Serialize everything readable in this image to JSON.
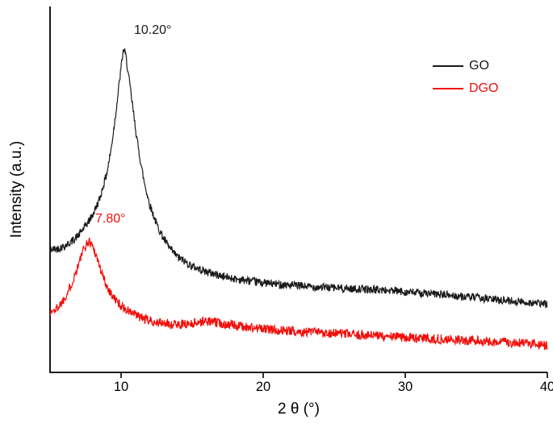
{
  "figure": {
    "xlabel": "2 θ (°)",
    "ylabel": "Intensity (a.u.)"
  },
  "annotations": [
    {
      "text": "10.20°",
      "color": "#1a1a1a",
      "series": "GO"
    },
    {
      "text": "7.80°",
      "color": "#f10e0a",
      "series": "DGO"
    }
  ],
  "legend": {
    "position": "upper right",
    "items": [
      {
        "label": "GO",
        "color": "#1a1a1a",
        "label_color": "#1a1a1a"
      },
      {
        "label": "DGO",
        "color": "#f10e0a",
        "label_color": "#f10e0a"
      }
    ]
  },
  "chart_data": {
    "type": "line",
    "title": "",
    "xlabel": "2 θ (°)",
    "ylabel": "Intensity (a.u.)",
    "x_range": [
      5,
      40
    ],
    "x_ticks": [
      10,
      20,
      30,
      40
    ],
    "y_axis_units": "arbitrary units (no ticks)",
    "grid": false,
    "legend_position": "upper right",
    "series": [
      {
        "name": "GO",
        "color": "#1a1a1a",
        "peak_2theta": 10.2,
        "peak_label": "10.20°",
        "noise": 0.011,
        "seed": 42,
        "points": [
          [
            5,
            0.335
          ],
          [
            5.5,
            0.338
          ],
          [
            6,
            0.345
          ],
          [
            6.5,
            0.357
          ],
          [
            7,
            0.375
          ],
          [
            7.5,
            0.4
          ],
          [
            8,
            0.43
          ],
          [
            8.5,
            0.475
          ],
          [
            9,
            0.545
          ],
          [
            9.3,
            0.61
          ],
          [
            9.6,
            0.7
          ],
          [
            9.9,
            0.8
          ],
          [
            10.1,
            0.865
          ],
          [
            10.2,
            0.885
          ],
          [
            10.35,
            0.86
          ],
          [
            10.6,
            0.79
          ],
          [
            10.9,
            0.7
          ],
          [
            11.2,
            0.615
          ],
          [
            11.6,
            0.525
          ],
          [
            12,
            0.46
          ],
          [
            12.5,
            0.405
          ],
          [
            13,
            0.365
          ],
          [
            13.5,
            0.335
          ],
          [
            14,
            0.315
          ],
          [
            15,
            0.29
          ],
          [
            16,
            0.275
          ],
          [
            17,
            0.264
          ],
          [
            18,
            0.256
          ],
          [
            19,
            0.25
          ],
          [
            20,
            0.245
          ],
          [
            21,
            0.241
          ],
          [
            22,
            0.238
          ],
          [
            23,
            0.235
          ],
          [
            24,
            0.233
          ],
          [
            25,
            0.231
          ],
          [
            26,
            0.229
          ],
          [
            27,
            0.227
          ],
          [
            28,
            0.226
          ],
          [
            29,
            0.223
          ],
          [
            30,
            0.22
          ],
          [
            31,
            0.217
          ],
          [
            32,
            0.214
          ],
          [
            33,
            0.211
          ],
          [
            34,
            0.207
          ],
          [
            35,
            0.204
          ],
          [
            36,
            0.2
          ],
          [
            37,
            0.197
          ],
          [
            38,
            0.193
          ],
          [
            39,
            0.19
          ],
          [
            40,
            0.186
          ]
        ]
      },
      {
        "name": "DGO",
        "color": "#f10e0a",
        "peak_2theta": 7.8,
        "peak_label": "7.80°",
        "noise": 0.013,
        "seed": 1337,
        "points": [
          [
            5,
            0.163
          ],
          [
            5.4,
            0.172
          ],
          [
            5.8,
            0.19
          ],
          [
            6.2,
            0.215
          ],
          [
            6.6,
            0.25
          ],
          [
            7.0,
            0.295
          ],
          [
            7.3,
            0.33
          ],
          [
            7.6,
            0.352
          ],
          [
            7.8,
            0.358
          ],
          [
            8.0,
            0.345
          ],
          [
            8.3,
            0.315
          ],
          [
            8.6,
            0.275
          ],
          [
            9,
            0.235
          ],
          [
            9.5,
            0.203
          ],
          [
            10,
            0.182
          ],
          [
            10.5,
            0.168
          ],
          [
            11,
            0.157
          ],
          [
            11.5,
            0.148
          ],
          [
            12,
            0.141
          ],
          [
            12.5,
            0.137
          ],
          [
            13,
            0.134
          ],
          [
            13.5,
            0.132
          ],
          [
            14,
            0.131
          ],
          [
            14.5,
            0.132
          ],
          [
            15,
            0.134
          ],
          [
            15.5,
            0.138
          ],
          [
            16,
            0.14
          ],
          [
            16.5,
            0.138
          ],
          [
            17,
            0.134
          ],
          [
            18,
            0.128
          ],
          [
            19,
            0.123
          ],
          [
            20,
            0.119
          ],
          [
            21,
            0.116
          ],
          [
            22,
            0.113
          ],
          [
            23,
            0.111
          ],
          [
            24,
            0.109
          ],
          [
            25,
            0.107
          ],
          [
            26,
            0.104
          ],
          [
            27,
            0.102
          ],
          [
            28,
            0.1
          ],
          [
            29,
            0.098
          ],
          [
            30,
            0.096
          ],
          [
            31,
            0.094
          ],
          [
            32,
            0.092
          ],
          [
            33,
            0.09
          ],
          [
            34,
            0.088
          ],
          [
            35,
            0.086
          ],
          [
            36,
            0.084
          ],
          [
            37,
            0.082
          ],
          [
            38,
            0.08
          ],
          [
            39,
            0.077
          ],
          [
            40,
            0.073
          ]
        ]
      }
    ]
  }
}
